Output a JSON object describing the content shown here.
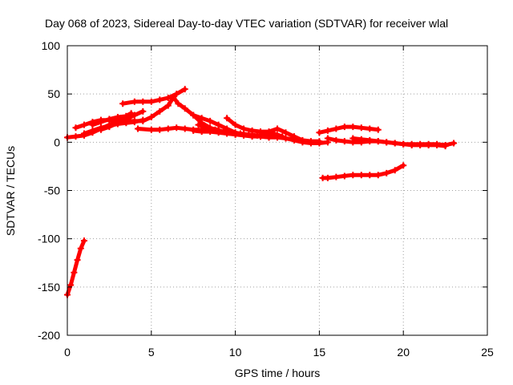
{
  "chart_data": {
    "type": "scatter",
    "title": "Day 068 of 2023, Sidereal Day-to-day VTEC variation (SDTVAR) for receiver wlal",
    "xlabel": "GPS time / hours",
    "ylabel": "SDTVAR / TECUs",
    "xlim": [
      0,
      25
    ],
    "ylim": [
      -200,
      100
    ],
    "xticks": [
      0,
      5,
      10,
      15,
      20,
      25
    ],
    "yticks": [
      -200,
      -150,
      -100,
      -50,
      0,
      50,
      100
    ],
    "grid": true,
    "marker": "plus",
    "color": "#ff0000",
    "series": [
      {
        "values": [
          [
            0.0,
            -158
          ],
          [
            0.2,
            -148
          ],
          [
            0.4,
            -135
          ],
          [
            0.6,
            -122
          ],
          [
            0.8,
            -110
          ],
          [
            1.0,
            -102
          ]
        ]
      },
      {
        "values": [
          [
            0.0,
            5
          ],
          [
            0.5,
            6
          ],
          [
            1.0,
            7
          ],
          [
            1.5,
            10
          ],
          [
            2.0,
            14
          ],
          [
            2.5,
            18
          ],
          [
            3.0,
            22
          ],
          [
            3.5,
            27
          ],
          [
            3.8,
            30
          ]
        ]
      },
      {
        "values": [
          [
            0.5,
            15
          ],
          [
            1.0,
            18
          ],
          [
            1.5,
            21
          ],
          [
            2.0,
            23
          ],
          [
            2.5,
            23
          ],
          [
            3.0,
            22
          ],
          [
            3.5,
            22
          ],
          [
            4.0,
            22
          ],
          [
            4.5,
            22
          ],
          [
            5.0,
            26
          ],
          [
            5.5,
            32
          ],
          [
            6.0,
            38
          ],
          [
            6.3,
            46
          ]
        ]
      },
      {
        "values": [
          [
            1.0,
            9
          ],
          [
            1.5,
            12
          ],
          [
            2.0,
            15
          ],
          [
            2.5,
            17
          ],
          [
            3.0,
            19
          ],
          [
            3.5,
            20
          ],
          [
            4.0,
            21
          ],
          [
            4.5,
            23
          ]
        ]
      },
      {
        "values": [
          [
            1.5,
            18
          ],
          [
            2.0,
            21
          ],
          [
            2.5,
            24
          ],
          [
            3.0,
            26
          ],
          [
            3.5,
            27
          ],
          [
            4.0,
            28
          ]
        ]
      },
      {
        "values": [
          [
            2.0,
            13
          ],
          [
            2.5,
            16
          ],
          [
            3.0,
            20
          ],
          [
            3.5,
            24
          ],
          [
            4.0,
            28
          ],
          [
            4.5,
            32
          ]
        ]
      },
      {
        "values": [
          [
            3.3,
            40
          ],
          [
            4.0,
            42
          ],
          [
            4.5,
            42
          ],
          [
            5.0,
            42
          ],
          [
            5.5,
            44
          ],
          [
            6.0,
            46
          ],
          [
            6.5,
            50
          ],
          [
            7.0,
            55
          ]
        ]
      },
      {
        "values": [
          [
            4.2,
            14
          ],
          [
            5.0,
            13
          ],
          [
            5.5,
            13
          ],
          [
            6.0,
            14
          ],
          [
            6.5,
            15
          ],
          [
            7.0,
            14
          ],
          [
            7.5,
            13
          ],
          [
            8.0,
            13
          ],
          [
            8.5,
            14
          ],
          [
            9.0,
            13
          ]
        ]
      },
      {
        "values": [
          [
            6.3,
            47
          ],
          [
            6.6,
            40
          ],
          [
            7.0,
            35
          ],
          [
            7.5,
            28
          ],
          [
            8.0,
            20
          ],
          [
            8.5,
            15
          ],
          [
            9.0,
            12
          ],
          [
            9.5,
            10
          ],
          [
            10.0,
            8
          ],
          [
            10.5,
            7
          ],
          [
            11.0,
            6
          ],
          [
            11.5,
            6
          ],
          [
            12.0,
            6
          ],
          [
            12.5,
            7
          ]
        ]
      },
      {
        "values": [
          [
            7.5,
            28
          ],
          [
            8.0,
            25
          ],
          [
            8.5,
            22
          ],
          [
            9.0,
            18
          ],
          [
            9.5,
            14
          ],
          [
            10.0,
            10
          ],
          [
            10.5,
            8
          ],
          [
            11.0,
            7
          ],
          [
            11.5,
            6
          ],
          [
            12.0,
            5
          ],
          [
            12.5,
            5
          ],
          [
            13.0,
            4
          ],
          [
            13.5,
            3
          ]
        ]
      },
      {
        "values": [
          [
            7.5,
            12
          ],
          [
            8.0,
            11
          ],
          [
            8.5,
            11
          ],
          [
            9.0,
            10
          ],
          [
            9.5,
            9
          ],
          [
            10.0,
            8
          ],
          [
            10.5,
            8
          ],
          [
            11.0,
            7
          ],
          [
            11.5,
            6
          ],
          [
            12.0,
            5
          ],
          [
            12.5,
            6
          ],
          [
            13.0,
            4
          ],
          [
            13.5,
            2
          ],
          [
            14.0,
            0
          ],
          [
            14.5,
            -1
          ],
          [
            15.0,
            -1
          ],
          [
            15.5,
            0
          ]
        ]
      },
      {
        "values": [
          [
            9.5,
            25
          ],
          [
            10.0,
            18
          ],
          [
            10.5,
            14
          ],
          [
            11.0,
            12
          ],
          [
            11.5,
            11
          ],
          [
            12.0,
            11
          ],
          [
            12.5,
            14
          ],
          [
            13.0,
            10
          ],
          [
            13.5,
            6
          ],
          [
            14.0,
            2
          ],
          [
            14.5,
            1
          ],
          [
            15.0,
            1
          ]
        ]
      },
      {
        "values": [
          [
            7.8,
            18
          ],
          [
            8.3,
            15
          ],
          [
            8.8,
            13
          ],
          [
            9.3,
            11
          ],
          [
            9.8,
            10
          ],
          [
            10.3,
            9
          ],
          [
            10.8,
            8
          ],
          [
            11.3,
            7
          ],
          [
            11.8,
            7
          ],
          [
            12.3,
            9
          ],
          [
            12.8,
            6
          ]
        ]
      },
      {
        "values": [
          [
            15.0,
            10
          ],
          [
            15.5,
            12
          ],
          [
            16.0,
            14
          ],
          [
            16.5,
            16
          ],
          [
            17.0,
            16
          ],
          [
            17.5,
            15
          ],
          [
            18.0,
            14
          ],
          [
            18.5,
            13
          ]
        ]
      },
      {
        "values": [
          [
            15.5,
            4
          ],
          [
            16.0,
            2
          ],
          [
            16.5,
            1
          ],
          [
            17.0,
            0
          ],
          [
            17.5,
            0
          ],
          [
            18.0,
            1
          ],
          [
            18.5,
            1
          ],
          [
            19.0,
            0
          ],
          [
            19.5,
            -1
          ],
          [
            20.0,
            -2
          ],
          [
            20.5,
            -2
          ],
          [
            21.0,
            -2
          ],
          [
            21.5,
            -2
          ],
          [
            22.0,
            -2
          ],
          [
            22.5,
            -3
          ],
          [
            23.0,
            -1
          ]
        ]
      },
      {
        "values": [
          [
            17.0,
            4
          ],
          [
            17.5,
            3
          ],
          [
            18.0,
            2
          ],
          [
            18.5,
            1
          ],
          [
            19.0,
            0
          ],
          [
            19.5,
            -1
          ],
          [
            20.0,
            -2
          ],
          [
            20.5,
            -3
          ],
          [
            21.0,
            -3
          ],
          [
            21.5,
            -3
          ],
          [
            22.0,
            -3
          ],
          [
            22.5,
            -4
          ]
        ]
      },
      {
        "values": [
          [
            15.2,
            -37
          ],
          [
            15.5,
            -37
          ],
          [
            16.0,
            -36
          ],
          [
            16.5,
            -35
          ],
          [
            17.0,
            -34
          ],
          [
            17.5,
            -34
          ],
          [
            18.0,
            -34
          ],
          [
            18.5,
            -34
          ],
          [
            19.0,
            -32
          ],
          [
            19.5,
            -29
          ],
          [
            20.0,
            -24
          ]
        ]
      }
    ]
  }
}
